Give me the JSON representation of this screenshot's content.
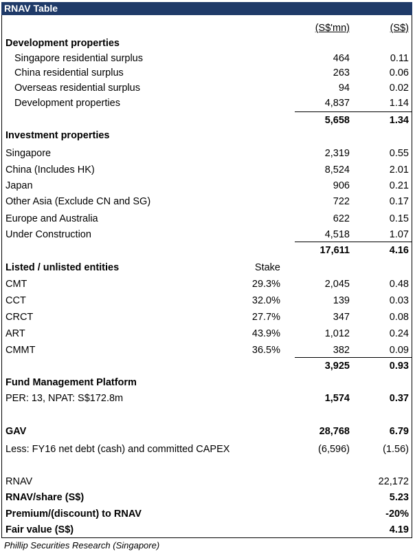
{
  "title": "RNAV Table",
  "header": {
    "col1": "(S$'mn)",
    "col2": "(S$)"
  },
  "development": {
    "heading": "Development properties",
    "rows": [
      {
        "label": "Singapore residential surplus",
        "v1": "464",
        "v2": "0.11"
      },
      {
        "label": "China residential surplus",
        "v1": "263",
        "v2": "0.06"
      },
      {
        "label": "Overseas residential surplus",
        "v1": "94",
        "v2": "0.02"
      },
      {
        "label": "Development properties",
        "v1": "4,837",
        "v2": "1.14"
      }
    ],
    "total": {
      "v1": "5,658",
      "v2": "1.34"
    }
  },
  "investment": {
    "heading": "Investment properties",
    "rows": [
      {
        "label": "Singapore",
        "v1": "2,319",
        "v2": "0.55"
      },
      {
        "label": "China (Includes HK)",
        "v1": "8,524",
        "v2": "2.01"
      },
      {
        "label": "Japan",
        "v1": "906",
        "v2": "0.21"
      },
      {
        "label": "Other Asia (Exclude CN and SG)",
        "v1": "722",
        "v2": "0.17"
      },
      {
        "label": "Europe and Australia",
        "v1": "622",
        "v2": "0.15"
      },
      {
        "label": "Under Construction",
        "v1": "4,518",
        "v2": "1.07"
      }
    ],
    "total": {
      "v1": "17,611",
      "v2": "4.16"
    }
  },
  "listed": {
    "heading": "Listed / unlisted entities",
    "stake_header": "Stake",
    "rows": [
      {
        "label": "CMT",
        "stake": "29.3%",
        "v1": "2,045",
        "v2": "0.48"
      },
      {
        "label": "CCT",
        "stake": "32.0%",
        "v1": "139",
        "v2": "0.03"
      },
      {
        "label": "CRCT",
        "stake": "27.7%",
        "v1": "347",
        "v2": "0.08"
      },
      {
        "label": "ART",
        "stake": "43.9%",
        "v1": "1,012",
        "v2": "0.24"
      },
      {
        "label": "CMMT",
        "stake": "36.5%",
        "v1": "382",
        "v2": "0.09"
      }
    ],
    "total": {
      "v1": "3,925",
      "v2": "0.93"
    }
  },
  "fund": {
    "heading": "Fund Management Platform",
    "label": "PER: 13, NPAT: S$172.8m",
    "v1": "1,574",
    "v2": "0.37"
  },
  "gav": {
    "label": "GAV",
    "v1": "28,768",
    "v2": "6.79"
  },
  "less": {
    "label": "Less: FY16 net debt (cash) and committed CAPEX",
    "v1": "(6,596)",
    "v2": "(1.56)"
  },
  "rnav": {
    "label": "RNAV",
    "v2": "22,172"
  },
  "rnav_share": {
    "label": "RNAV/share (S$)",
    "v2": "5.23"
  },
  "premium": {
    "label": "Premium/(discount) to RNAV",
    "v2": "-20%"
  },
  "fair_value": {
    "label": "Fair value (S$)",
    "v2": "4.19"
  },
  "footer": "Phillip Securities Research (Singapore)"
}
